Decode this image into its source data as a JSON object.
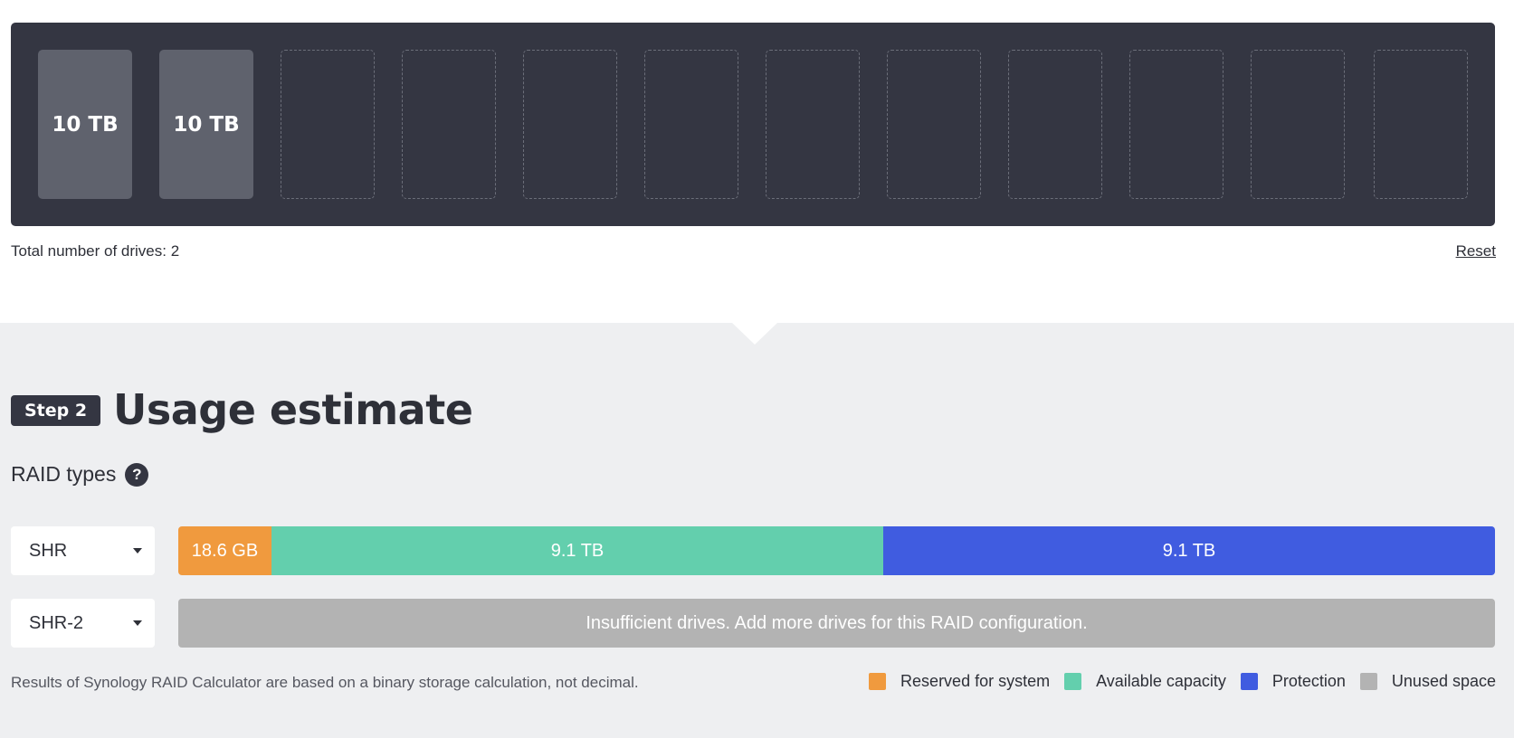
{
  "drive_bay": {
    "drives": [
      "10 TB",
      "10 TB",
      "",
      "",
      "",
      "",
      "",
      "",
      "",
      "",
      "",
      ""
    ]
  },
  "drive_info": {
    "total_label": "Total number of drives: 2",
    "reset_label": "Reset"
  },
  "step": {
    "badge": "Step 2",
    "title": "Usage estimate"
  },
  "raid": {
    "label": "RAID types",
    "help_icon": "?",
    "rows": [
      {
        "type": "SHR",
        "segments": [
          {
            "label": "18.6 GB",
            "color": "#f09a3e"
          },
          {
            "label": "9.1 TB",
            "color": "#63cfad"
          },
          {
            "label": "9.1 TB",
            "color": "#405ce0"
          }
        ]
      },
      {
        "type": "SHR-2",
        "message": "Insufficient drives. Add more drives for this RAID configuration."
      }
    ]
  },
  "footnote": "Results of Synology RAID Calculator are based on a binary storage calculation, not decimal.",
  "legend": [
    {
      "label": "Reserved for system",
      "color": "#f09a3e"
    },
    {
      "label": "Available capacity",
      "color": "#63cfad"
    },
    {
      "label": "Protection",
      "color": "#405ce0"
    },
    {
      "label": "Unused space",
      "color": "#b3b3b3"
    }
  ]
}
